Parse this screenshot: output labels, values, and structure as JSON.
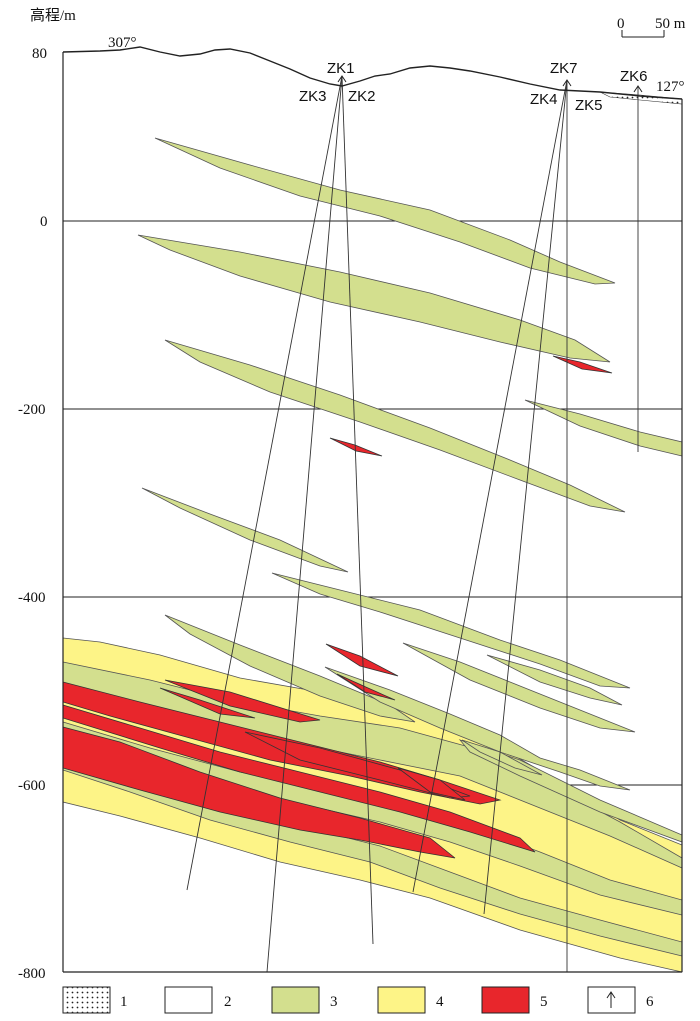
{
  "axis": {
    "unit_label": "高程/m",
    "ticks": [
      "80",
      "0",
      "-200",
      "-400",
      "-600",
      "-800"
    ]
  },
  "scale_bar": {
    "start": "0",
    "end": "50 m"
  },
  "azimuth": {
    "left": "307°",
    "right": "127°"
  },
  "boreholes": [
    "ZK1",
    "ZK2",
    "ZK3",
    "ZK4",
    "ZK5",
    "ZK6",
    "ZK7"
  ],
  "legend": {
    "items": [
      {
        "label": "1",
        "kind": "dotted"
      },
      {
        "label": "2",
        "kind": "white"
      },
      {
        "label": "3",
        "kind": "green"
      },
      {
        "label": "4",
        "kind": "yellow"
      },
      {
        "label": "5",
        "kind": "red"
      },
      {
        "label": "6",
        "kind": "arrow"
      }
    ]
  },
  "colors": {
    "green": "#d3df8e",
    "yellow": "#fdf487",
    "red": "#e8262c",
    "line": "#333333"
  }
}
